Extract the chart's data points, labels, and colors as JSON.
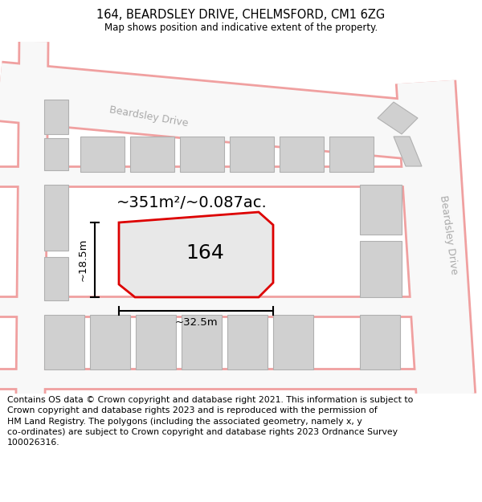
{
  "title": "164, BEARDSLEY DRIVE, CHELMSFORD, CM1 6ZG",
  "subtitle": "Map shows position and indicative extent of the property.",
  "footer": "Contains OS data © Crown copyright and database right 2021. This information is subject to\nCrown copyright and database rights 2023 and is reproduced with the permission of\nHM Land Registry. The polygons (including the associated geometry, namely x, y\nco-ordinates) are subject to Crown copyright and database rights 2023 Ordnance Survey\n100026316.",
  "title_fontsize": 10.5,
  "subtitle_fontsize": 8.5,
  "footer_fontsize": 7.8,
  "bg_color": "#f2f2f2",
  "road_pink": "#f0a0a0",
  "road_white": "#f8f8f8",
  "building_fill": "#d0d0d0",
  "building_edge": "#b0b0b0",
  "property_fill": "#e8e8e8",
  "property_edge": "#dd0000",
  "property_lw": 2.0
}
